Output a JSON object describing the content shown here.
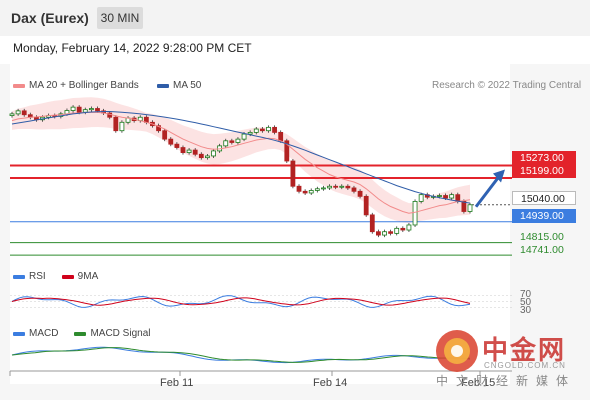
{
  "header": {
    "instrument": "Dax (Eurex)",
    "timeframe": "30 MIN"
  },
  "datetime": "Monday, February 14, 2022 9:28:00 PM CET",
  "legend": {
    "ma20": "MA 20 + Bollinger Bands",
    "ma50": "MA 50",
    "credit": "Research © 2022 Trading Central",
    "rsi": "RSI",
    "rsi_ma": "9MA",
    "macd": "MACD",
    "macd_signal": "MACD Signal"
  },
  "colors": {
    "ma20": "#f28b8b",
    "ma50": "#2f5da8",
    "resistance": "#e3232b",
    "current": "#222222",
    "support_blue": "#3b7de0",
    "support_green": "#2e8b2e",
    "band_fill": "#fbdcdc",
    "candle_up": "#1a7a1a",
    "candle_down": "#b22222",
    "arrow": "#2f62b3"
  },
  "levels": [
    {
      "name": "resistance-2",
      "value": 15273.0,
      "label": "15273.00",
      "style": "resistance"
    },
    {
      "name": "resistance-1",
      "value": 15199.0,
      "label": "15199.00",
      "style": "resistance"
    },
    {
      "name": "last-price",
      "value": 15040.0,
      "label": "15040.00",
      "style": "current"
    },
    {
      "name": "pivot",
      "value": 14939.0,
      "label": "14939.00",
      "style": "support_blue"
    },
    {
      "name": "support-1",
      "value": 14815.0,
      "label": "14815.00",
      "style": "support_green"
    },
    {
      "name": "support-2",
      "value": 14741.0,
      "label": "14741.00",
      "style": "support_green"
    }
  ],
  "rsi_levels": [
    "70",
    "50",
    "30"
  ],
  "x_axis": [
    "Feb 11",
    "Feb 14",
    "Feb 15"
  ],
  "watermark": {
    "brand": "中金网",
    "url": "CNGOLD.COM.CN",
    "tagline": "中文财经新媒体"
  },
  "chart_data": {
    "type": "candlestick",
    "timeframe_minutes": 30,
    "x_ticks": [
      "Feb 11",
      "Feb 14",
      "Feb 15"
    ],
    "ylim": [
      14700,
      15710
    ],
    "candles_close": [
      15580,
      15598,
      15575,
      15560,
      15545,
      15560,
      15570,
      15565,
      15580,
      15600,
      15620,
      15590,
      15605,
      15612,
      15598,
      15585,
      15560,
      15480,
      15530,
      15555,
      15540,
      15560,
      15530,
      15510,
      15480,
      15430,
      15400,
      15380,
      15350,
      15365,
      15340,
      15320,
      15330,
      15360,
      15390,
      15420,
      15410,
      15430,
      15460,
      15470,
      15490,
      15480,
      15500,
      15470,
      15420,
      15300,
      15150,
      15120,
      15110,
      15125,
      15135,
      15140,
      15150,
      15145,
      15150,
      15140,
      15120,
      15090,
      14980,
      14880,
      14860,
      14880,
      14870,
      14900,
      14890,
      14920,
      15060,
      15100,
      15085,
      15090,
      15095,
      15080,
      15100,
      15060,
      15000,
      15040
    ],
    "ma20": [
      15540,
      15550,
      15555,
      15560,
      15562,
      15565,
      15570,
      15573,
      15575,
      15580,
      15585,
      15586,
      15588,
      15590,
      15589,
      15585,
      15578,
      15568,
      15560,
      15555,
      15548,
      15540,
      15530,
      15520,
      15505,
      15490,
      15470,
      15450,
      15430,
      15415,
      15400,
      15385,
      15375,
      15370,
      15372,
      15378,
      15385,
      15395,
      15405,
      15415,
      15425,
      15430,
      15435,
      15432,
      15420,
      15400,
      15370,
      15340,
      15310,
      15285,
      15260,
      15240,
      15220,
      15205,
      15195,
      15185,
      15175,
      15160,
      15135,
      15105,
      15075,
      15050,
      15030,
      15015,
      15000,
      14990,
      14995,
      15005,
      15015,
      15025,
      15035,
      15040,
      15050,
      15060,
      15065,
      15070
    ],
    "ma50": [
      15520,
      15526,
      15532,
      15538,
      15544,
      15550,
      15556,
      15562,
      15568,
      15574,
      15580,
      15584,
      15588,
      15591,
      15593,
      15594,
      15594,
      15592,
      15590,
      15587,
      15584,
      15580,
      15576,
      15571,
      15566,
      15561,
      15555,
      15549,
      15542,
      15535,
      15528,
      15520,
      15512,
      15504,
      15496,
      15488,
      15480,
      15472,
      15464,
      15456,
      15448,
      15440,
      15432,
      15423,
      15413,
      15402,
      15390,
      15377,
      15364,
      15350,
      15336,
      15322,
      15308,
      15294,
      15280,
      15266,
      15252,
      15238,
      15224,
      15210,
      15196,
      15182,
      15168,
      15154,
      15142,
      15130,
      15118,
      15108,
      15098,
      15090,
      15082,
      15075,
      15068,
      15062,
      15056,
      15050
    ],
    "rsi_range": [
      0,
      100
    ],
    "macd_range": [
      -1,
      1
    ]
  }
}
